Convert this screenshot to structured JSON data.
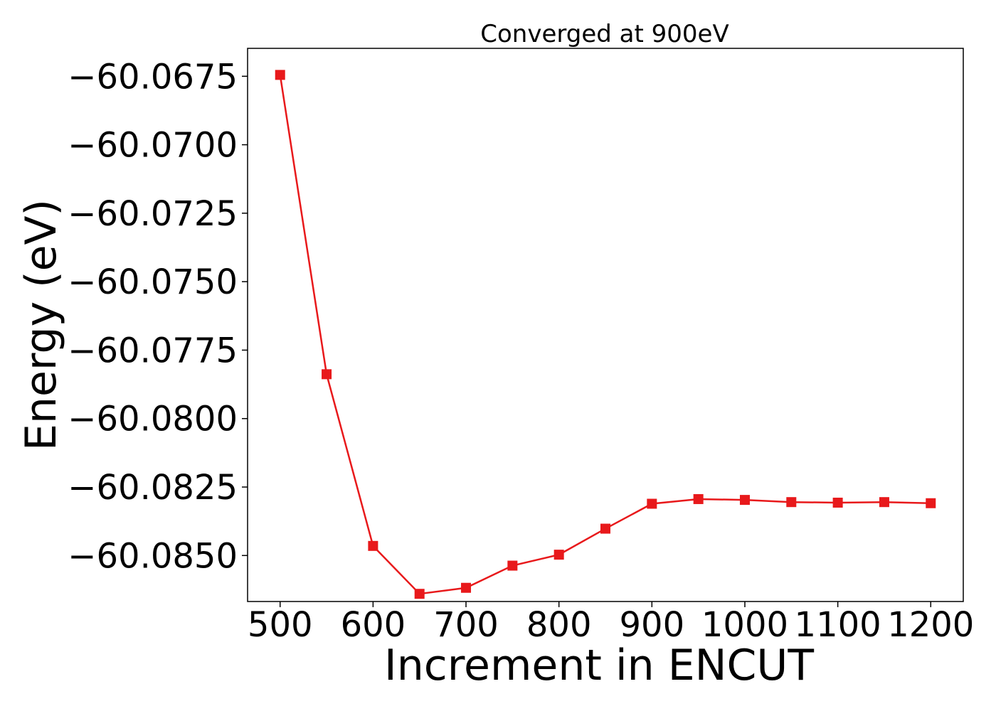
{
  "chart_data": {
    "type": "line",
    "title": "Converged at 900eV",
    "xlabel": "Increment in ENCUT",
    "ylabel": "Energy (eV)",
    "x": [
      500,
      550,
      600,
      650,
      700,
      750,
      800,
      850,
      900,
      950,
      1000,
      1050,
      1100,
      1150,
      1200
    ],
    "series": [
      {
        "values": [
          -60.06745,
          -60.07838,
          -60.08465,
          -60.0864,
          -60.08618,
          -60.08537,
          -60.08497,
          -60.08402,
          -60.08311,
          -60.08294,
          -60.08297,
          -60.08305,
          -60.08307,
          -60.08305,
          -60.08309
        ],
        "color": "#e8191b",
        "marker": "square"
      }
    ],
    "xticks": [
      500,
      600,
      700,
      800,
      900,
      1000,
      1100,
      1200
    ],
    "xtick_labels": [
      "500",
      "600",
      "700",
      "800",
      "900",
      "1000",
      "1100",
      "1200"
    ],
    "yticks": [
      -60.0675,
      -60.07,
      -60.0725,
      -60.075,
      -60.0775,
      -60.08,
      -60.0825,
      -60.085
    ],
    "ytick_labels": [
      "−60.0675",
      "−60.0700",
      "−60.0725",
      "−60.0750",
      "−60.0775",
      "−60.0800",
      "−60.0825",
      "−60.0850"
    ],
    "xlim": [
      465,
      1235
    ],
    "ylim": [
      -60.08668,
      -60.06648
    ],
    "grid": false,
    "legend": "none"
  }
}
